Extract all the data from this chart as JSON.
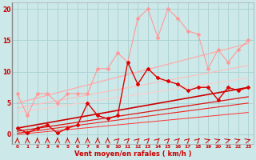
{
  "xlabel": "Vent moyen/en rafales ( km/h )",
  "xlim": [
    -0.5,
    23.5
  ],
  "ylim": [
    -1.5,
    21
  ],
  "background_color": "#cce8e8",
  "grid_color": "#aad0d0",
  "series": [
    {
      "name": "light_pink_zigzag",
      "color": "#ff9999",
      "lw": 0.8,
      "marker": "D",
      "markersize": 2.0,
      "x": [
        0,
        1,
        2,
        3,
        4,
        5,
        6,
        7,
        8,
        9,
        10,
        11,
        12,
        13,
        14,
        15,
        16,
        17,
        18,
        19,
        20,
        21,
        22,
        23
      ],
      "y": [
        6.5,
        3.0,
        6.5,
        6.5,
        5.0,
        6.5,
        6.5,
        6.5,
        10.5,
        10.5,
        13.0,
        11.5,
        18.5,
        20.0,
        15.5,
        20.0,
        18.5,
        16.5,
        16.0,
        10.5,
        13.5,
        11.5,
        13.5,
        15.0
      ]
    },
    {
      "name": "pink_trend_top",
      "color": "#ffaaaa",
      "lw": 0.9,
      "marker": null,
      "x": [
        0,
        23
      ],
      "y": [
        5.0,
        14.5
      ]
    },
    {
      "name": "pink_trend_mid1",
      "color": "#ffbbbb",
      "lw": 0.8,
      "marker": null,
      "x": [
        0,
        23
      ],
      "y": [
        4.2,
        11.0
      ]
    },
    {
      "name": "pink_trend_mid2",
      "color": "#ffcccc",
      "lw": 0.8,
      "marker": null,
      "x": [
        0,
        23
      ],
      "y": [
        3.5,
        9.0
      ]
    },
    {
      "name": "dark_red_zigzag",
      "color": "#dd0000",
      "lw": 1.0,
      "marker": "D",
      "markersize": 2.0,
      "x": [
        0,
        1,
        2,
        3,
        4,
        5,
        6,
        7,
        8,
        9,
        10,
        11,
        12,
        13,
        14,
        15,
        16,
        17,
        18,
        19,
        20,
        21,
        22,
        23
      ],
      "y": [
        1.0,
        0.2,
        1.0,
        1.5,
        0.2,
        1.0,
        1.5,
        5.0,
        3.0,
        2.5,
        3.0,
        11.5,
        8.0,
        10.5,
        9.0,
        8.5,
        8.0,
        7.0,
        7.5,
        7.5,
        5.5,
        7.5,
        7.0,
        7.5
      ]
    },
    {
      "name": "red_trend_top",
      "color": "#cc0000",
      "lw": 1.2,
      "marker": null,
      "x": [
        0,
        23
      ],
      "y": [
        1.0,
        7.5
      ]
    },
    {
      "name": "red_trend_mid1",
      "color": "#dd1111",
      "lw": 0.9,
      "marker": null,
      "x": [
        0,
        23
      ],
      "y": [
        0.5,
        6.0
      ]
    },
    {
      "name": "red_trend_mid2",
      "color": "#ee2222",
      "lw": 0.8,
      "marker": null,
      "x": [
        0,
        23
      ],
      "y": [
        0.2,
        5.0
      ]
    },
    {
      "name": "red_trend_bot",
      "color": "#ff3333",
      "lw": 0.7,
      "marker": null,
      "x": [
        0,
        23
      ],
      "y": [
        0.0,
        3.5
      ]
    }
  ],
  "yticks": [
    0,
    5,
    10,
    15,
    20
  ],
  "xticks": [
    0,
    1,
    2,
    3,
    4,
    5,
    6,
    7,
    8,
    9,
    10,
    11,
    12,
    13,
    14,
    15,
    16,
    17,
    18,
    19,
    20,
    21,
    22,
    23
  ],
  "tick_color": "#cc0000",
  "xlabel_color": "#cc0000",
  "xlabel_fontsize": 6.0,
  "ytick_fontsize": 5.5,
  "xtick_fontsize": 4.2
}
